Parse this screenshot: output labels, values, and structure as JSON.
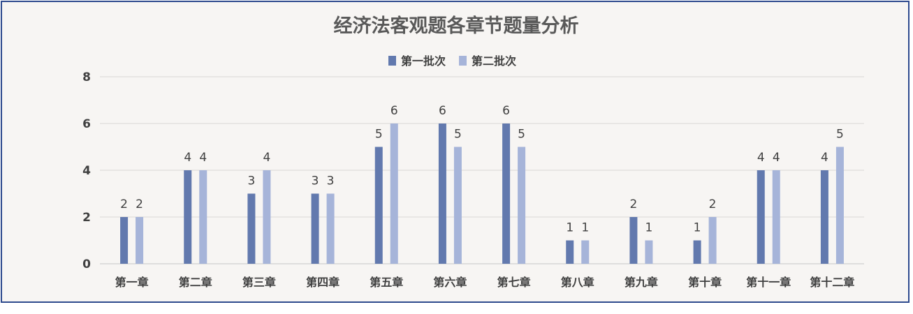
{
  "chart_data": {
    "type": "bar",
    "title": "经济法客观题各章节题量分析",
    "categories": [
      "第一章",
      "第二章",
      "第三章",
      "第四章",
      "第五章",
      "第六章",
      "第七章",
      "第八章",
      "第九章",
      "第十章",
      "第十一章",
      "第十二章"
    ],
    "series": [
      {
        "name": "第一批次",
        "color": "#6279ae",
        "values": [
          2,
          4,
          3,
          3,
          5,
          6,
          6,
          1,
          2,
          1,
          4,
          4
        ]
      },
      {
        "name": "第二批次",
        "color": "#a6b4d9",
        "values": [
          2,
          4,
          4,
          3,
          6,
          5,
          5,
          1,
          1,
          2,
          4,
          5
        ]
      }
    ],
    "y_ticks": [
      "0",
      "2",
      "4",
      "6",
      "8"
    ],
    "ylim": [
      0,
      8
    ],
    "grid": true,
    "legend_position": "top-center",
    "data_labels": true
  }
}
